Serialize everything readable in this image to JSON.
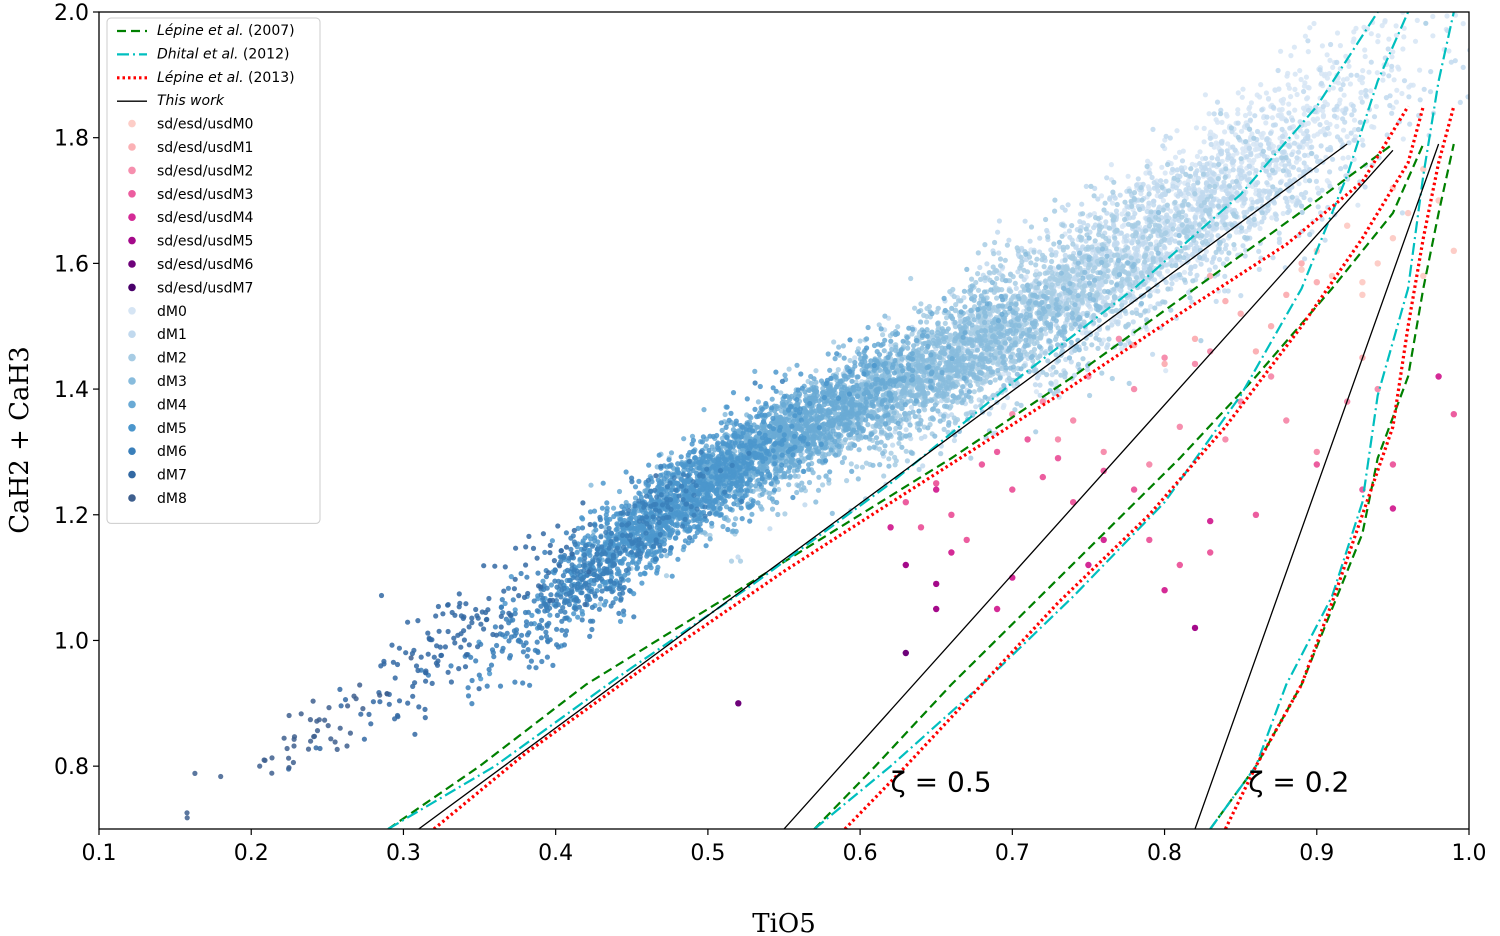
{
  "chart_data": {
    "type": "scatter",
    "title": "",
    "xlabel": "TiO5",
    "ylabel": "CaH2 + CaH3",
    "xlim": [
      0.1,
      1.0
    ],
    "ylim": [
      0.7,
      2.0
    ],
    "xticks": [
      "0.1",
      "0.2",
      "0.3",
      "0.4",
      "0.5",
      "0.6",
      "0.7",
      "0.8",
      "0.9",
      "1.0"
    ],
    "yticks": [
      "0.8",
      "1.0",
      "1.2",
      "1.4",
      "1.6",
      "1.8",
      "2.0"
    ],
    "legend_position": "top-left",
    "grid": false,
    "lines": [
      {
        "name": "Lépine et al.",
        "year": "(2007)",
        "style": "dashed",
        "color": "#008000",
        "segments": [
          [
            [
              0.29,
              0.7
            ],
            [
              0.35,
              0.8
            ],
            [
              0.42,
              0.93
            ],
            [
              0.5,
              1.05
            ],
            [
              0.58,
              1.17
            ],
            [
              0.66,
              1.29
            ],
            [
              0.74,
              1.42
            ],
            [
              0.82,
              1.56
            ],
            [
              0.9,
              1.7
            ],
            [
              0.95,
              1.79
            ]
          ],
          [
            [
              0.57,
              0.7
            ],
            [
              0.61,
              0.8
            ],
            [
              0.66,
              0.93
            ],
            [
              0.71,
              1.05
            ],
            [
              0.76,
              1.17
            ],
            [
              0.81,
              1.29
            ],
            [
              0.86,
              1.42
            ],
            [
              0.91,
              1.56
            ],
            [
              0.95,
              1.68
            ],
            [
              0.97,
              1.79
            ]
          ],
          [
            [
              0.83,
              0.7
            ],
            [
              0.86,
              0.8
            ],
            [
              0.89,
              0.93
            ],
            [
              0.91,
              1.05
            ],
            [
              0.93,
              1.17
            ],
            [
              0.94,
              1.29
            ],
            [
              0.96,
              1.42
            ],
            [
              0.97,
              1.56
            ],
            [
              0.98,
              1.68
            ],
            [
              0.99,
              1.79
            ]
          ]
        ]
      },
      {
        "name": "Dhital et al.",
        "year": "(2012)",
        "style": "dashdot",
        "color": "#00bfbf",
        "segments": [
          [
            [
              0.29,
              0.7
            ],
            [
              0.36,
              0.8
            ],
            [
              0.44,
              0.94
            ],
            [
              0.53,
              1.09
            ],
            [
              0.62,
              1.25
            ],
            [
              0.7,
              1.41
            ],
            [
              0.78,
              1.56
            ],
            [
              0.85,
              1.71
            ],
            [
              0.9,
              1.85
            ],
            [
              0.94,
              2.0
            ]
          ],
          [
            [
              0.57,
              0.7
            ],
            [
              0.62,
              0.8
            ],
            [
              0.68,
              0.93
            ],
            [
              0.74,
              1.07
            ],
            [
              0.8,
              1.22
            ],
            [
              0.85,
              1.39
            ],
            [
              0.89,
              1.56
            ],
            [
              0.92,
              1.74
            ],
            [
              0.94,
              1.89
            ],
            [
              0.96,
              2.0
            ]
          ],
          [
            [
              0.83,
              0.7
            ],
            [
              0.86,
              0.8
            ],
            [
              0.88,
              0.93
            ],
            [
              0.91,
              1.07
            ],
            [
              0.93,
              1.22
            ],
            [
              0.94,
              1.39
            ],
            [
              0.96,
              1.56
            ],
            [
              0.97,
              1.74
            ],
            [
              0.98,
              1.89
            ],
            [
              0.99,
              2.0
            ]
          ]
        ]
      },
      {
        "name": "Lépine et al.",
        "year": "(2013)",
        "style": "dotted",
        "color": "#ff0000",
        "segments": [
          [
            [
              0.32,
              0.7
            ],
            [
              0.38,
              0.82
            ],
            [
              0.46,
              0.96
            ],
            [
              0.55,
              1.11
            ],
            [
              0.64,
              1.25
            ],
            [
              0.73,
              1.39
            ],
            [
              0.81,
              1.52
            ],
            [
              0.88,
              1.63
            ],
            [
              0.93,
              1.73
            ],
            [
              0.96,
              1.85
            ]
          ],
          [
            [
              0.59,
              0.7
            ],
            [
              0.63,
              0.8
            ],
            [
              0.68,
              0.93
            ],
            [
              0.73,
              1.06
            ],
            [
              0.79,
              1.2
            ],
            [
              0.84,
              1.34
            ],
            [
              0.89,
              1.5
            ],
            [
              0.93,
              1.64
            ],
            [
              0.96,
              1.76
            ],
            [
              0.97,
              1.85
            ]
          ],
          [
            [
              0.84,
              0.7
            ],
            [
              0.86,
              0.8
            ],
            [
              0.89,
              0.93
            ],
            [
              0.91,
              1.06
            ],
            [
              0.93,
              1.2
            ],
            [
              0.95,
              1.34
            ],
            [
              0.96,
              1.5
            ],
            [
              0.97,
              1.64
            ],
            [
              0.98,
              1.76
            ],
            [
              0.99,
              1.85
            ]
          ]
        ]
      },
      {
        "name": "This work",
        "year": "",
        "style": "solid",
        "color": "#000000",
        "segments": [
          [
            [
              0.31,
              0.7
            ],
            [
              0.92,
              1.79
            ]
          ],
          [
            [
              0.55,
              0.7
            ],
            [
              0.95,
              1.78
            ]
          ],
          [
            [
              0.82,
              0.7
            ],
            [
              0.98,
              1.79
            ]
          ]
        ]
      }
    ],
    "annotations": [
      {
        "text": "ζ = 0.5",
        "x": 0.62,
        "y": 0.76
      },
      {
        "text": "ζ = 0.2",
        "x": 0.855,
        "y": 0.76
      }
    ],
    "dwarf_series": [
      {
        "name": "dM0",
        "color": "#d6e5f4"
      },
      {
        "name": "dM1",
        "color": "#c1d9ee"
      },
      {
        "name": "dM2",
        "color": "#a7cce4"
      },
      {
        "name": "dM3",
        "color": "#88bcdd"
      },
      {
        "name": "dM4",
        "color": "#6aaad5"
      },
      {
        "name": "dM5",
        "color": "#4b96cc"
      },
      {
        "name": "dM6",
        "color": "#3a7fba"
      },
      {
        "name": "dM7",
        "color": "#3369a3"
      },
      {
        "name": "dM8",
        "color": "#3e5f8e"
      }
    ],
    "dwarf_density": [
      {
        "series": "dM0",
        "tio5": [
          0.7,
          0.97
        ],
        "cah": [
          1.5,
          1.95
        ],
        "count": 900
      },
      {
        "series": "dM1",
        "tio5": [
          0.62,
          0.95
        ],
        "cah": [
          1.4,
          1.85
        ],
        "count": 1400
      },
      {
        "series": "dM2",
        "tio5": [
          0.55,
          0.85
        ],
        "cah": [
          1.3,
          1.7
        ],
        "count": 1500
      },
      {
        "series": "dM3",
        "tio5": [
          0.5,
          0.75
        ],
        "cah": [
          1.25,
          1.55
        ],
        "count": 1400
      },
      {
        "series": "dM4",
        "tio5": [
          0.46,
          0.64
        ],
        "cah": [
          1.2,
          1.45
        ],
        "count": 1300
      },
      {
        "series": "dM5",
        "tio5": [
          0.4,
          0.56
        ],
        "cah": [
          1.08,
          1.35
        ],
        "count": 1200
      },
      {
        "series": "dM6",
        "tio5": [
          0.34,
          0.5
        ],
        "cah": [
          0.95,
          1.25
        ],
        "count": 420
      },
      {
        "series": "dM7",
        "tio5": [
          0.25,
          0.42
        ],
        "cah": [
          0.85,
          1.15
        ],
        "count": 150
      },
      {
        "series": "dM8",
        "tio5": [
          0.18,
          0.3
        ],
        "cah": [
          0.75,
          0.95
        ],
        "count": 45
      }
    ],
    "subdwarf_series": [
      {
        "name": "sd/esd/usdM0",
        "color": "#fdcdc7"
      },
      {
        "name": "sd/esd/usdM1",
        "color": "#fbb1b5"
      },
      {
        "name": "sd/esd/usdM2",
        "color": "#f68fae"
      },
      {
        "name": "sd/esd/usdM3",
        "color": "#ec5d9f"
      },
      {
        "name": "sd/esd/usdM4",
        "color": "#d42a96"
      },
      {
        "name": "sd/esd/usdM5",
        "color": "#a4098a"
      },
      {
        "name": "sd/esd/usdM6",
        "color": "#6e027a"
      },
      {
        "name": "sd/esd/usdM7",
        "color": "#49006a"
      }
    ],
    "subdwarf_points": [
      {
        "series": "sd/esd/usdM0",
        "tio5": [
          0.9,
          0.92,
          0.94,
          0.95,
          0.97,
          0.98,
          0.96,
          0.93,
          0.99,
          0.91,
          0.89,
          0.97,
          0.95,
          0.93
        ],
        "cah": [
          1.62,
          1.66,
          1.6,
          1.64,
          1.58,
          1.7,
          1.68,
          1.55,
          1.62,
          1.58,
          1.59,
          1.75,
          1.72,
          1.57
        ]
      },
      {
        "series": "sd/esd/usdM1",
        "tio5": [
          0.82,
          0.85,
          0.88,
          0.86,
          0.9,
          0.8,
          0.83,
          0.87,
          0.93,
          0.89,
          0.78,
          0.84
        ],
        "cah": [
          1.48,
          1.52,
          1.55,
          1.46,
          1.57,
          1.44,
          1.58,
          1.5,
          1.45,
          1.6,
          1.47,
          1.54
        ]
      },
      {
        "series": "sd/esd/usdM2",
        "tio5": [
          0.72,
          0.75,
          0.78,
          0.8,
          0.74,
          0.7,
          0.77,
          0.82,
          0.76,
          0.73,
          0.79,
          0.81,
          0.85,
          0.88,
          0.9,
          0.87,
          0.84,
          0.92,
          0.94,
          0.83
        ],
        "cah": [
          1.38,
          1.42,
          1.4,
          1.45,
          1.35,
          1.36,
          1.48,
          1.44,
          1.3,
          1.32,
          1.28,
          1.34,
          1.38,
          1.35,
          1.3,
          1.42,
          1.32,
          1.38,
          1.4,
          1.46
        ]
      },
      {
        "series": "sd/esd/usdM3",
        "tio5": [
          0.63,
          0.65,
          0.68,
          0.7,
          0.72,
          0.66,
          0.69,
          0.74,
          0.76,
          0.78,
          0.64,
          0.71,
          0.67,
          0.73,
          0.79,
          0.83,
          0.81,
          0.86,
          0.9,
          0.95,
          0.93,
          0.99
        ],
        "cah": [
          1.22,
          1.25,
          1.28,
          1.24,
          1.26,
          1.2,
          1.3,
          1.22,
          1.27,
          1.24,
          1.18,
          1.32,
          1.16,
          1.29,
          1.16,
          1.14,
          1.12,
          1.2,
          1.28,
          1.28,
          1.24,
          1.36
        ]
      },
      {
        "series": "sd/esd/usdM4",
        "tio5": [
          0.62,
          0.66,
          0.7,
          0.75,
          0.8,
          0.83,
          0.76,
          0.69,
          0.95,
          0.98,
          0.65
        ],
        "cah": [
          1.18,
          1.14,
          1.1,
          1.12,
          1.08,
          1.19,
          1.16,
          1.05,
          1.21,
          1.42,
          1.24
        ]
      },
      {
        "series": "sd/esd/usdM5",
        "tio5": [
          0.63,
          0.65,
          0.65,
          0.82
        ],
        "cah": [
          1.12,
          1.09,
          1.05,
          1.02
        ]
      },
      {
        "series": "sd/esd/usdM6",
        "tio5": [
          0.52,
          0.63
        ],
        "cah": [
          0.9,
          0.98
        ]
      },
      {
        "series": "sd/esd/usdM7",
        "tio5": [],
        "cah": []
      }
    ]
  }
}
